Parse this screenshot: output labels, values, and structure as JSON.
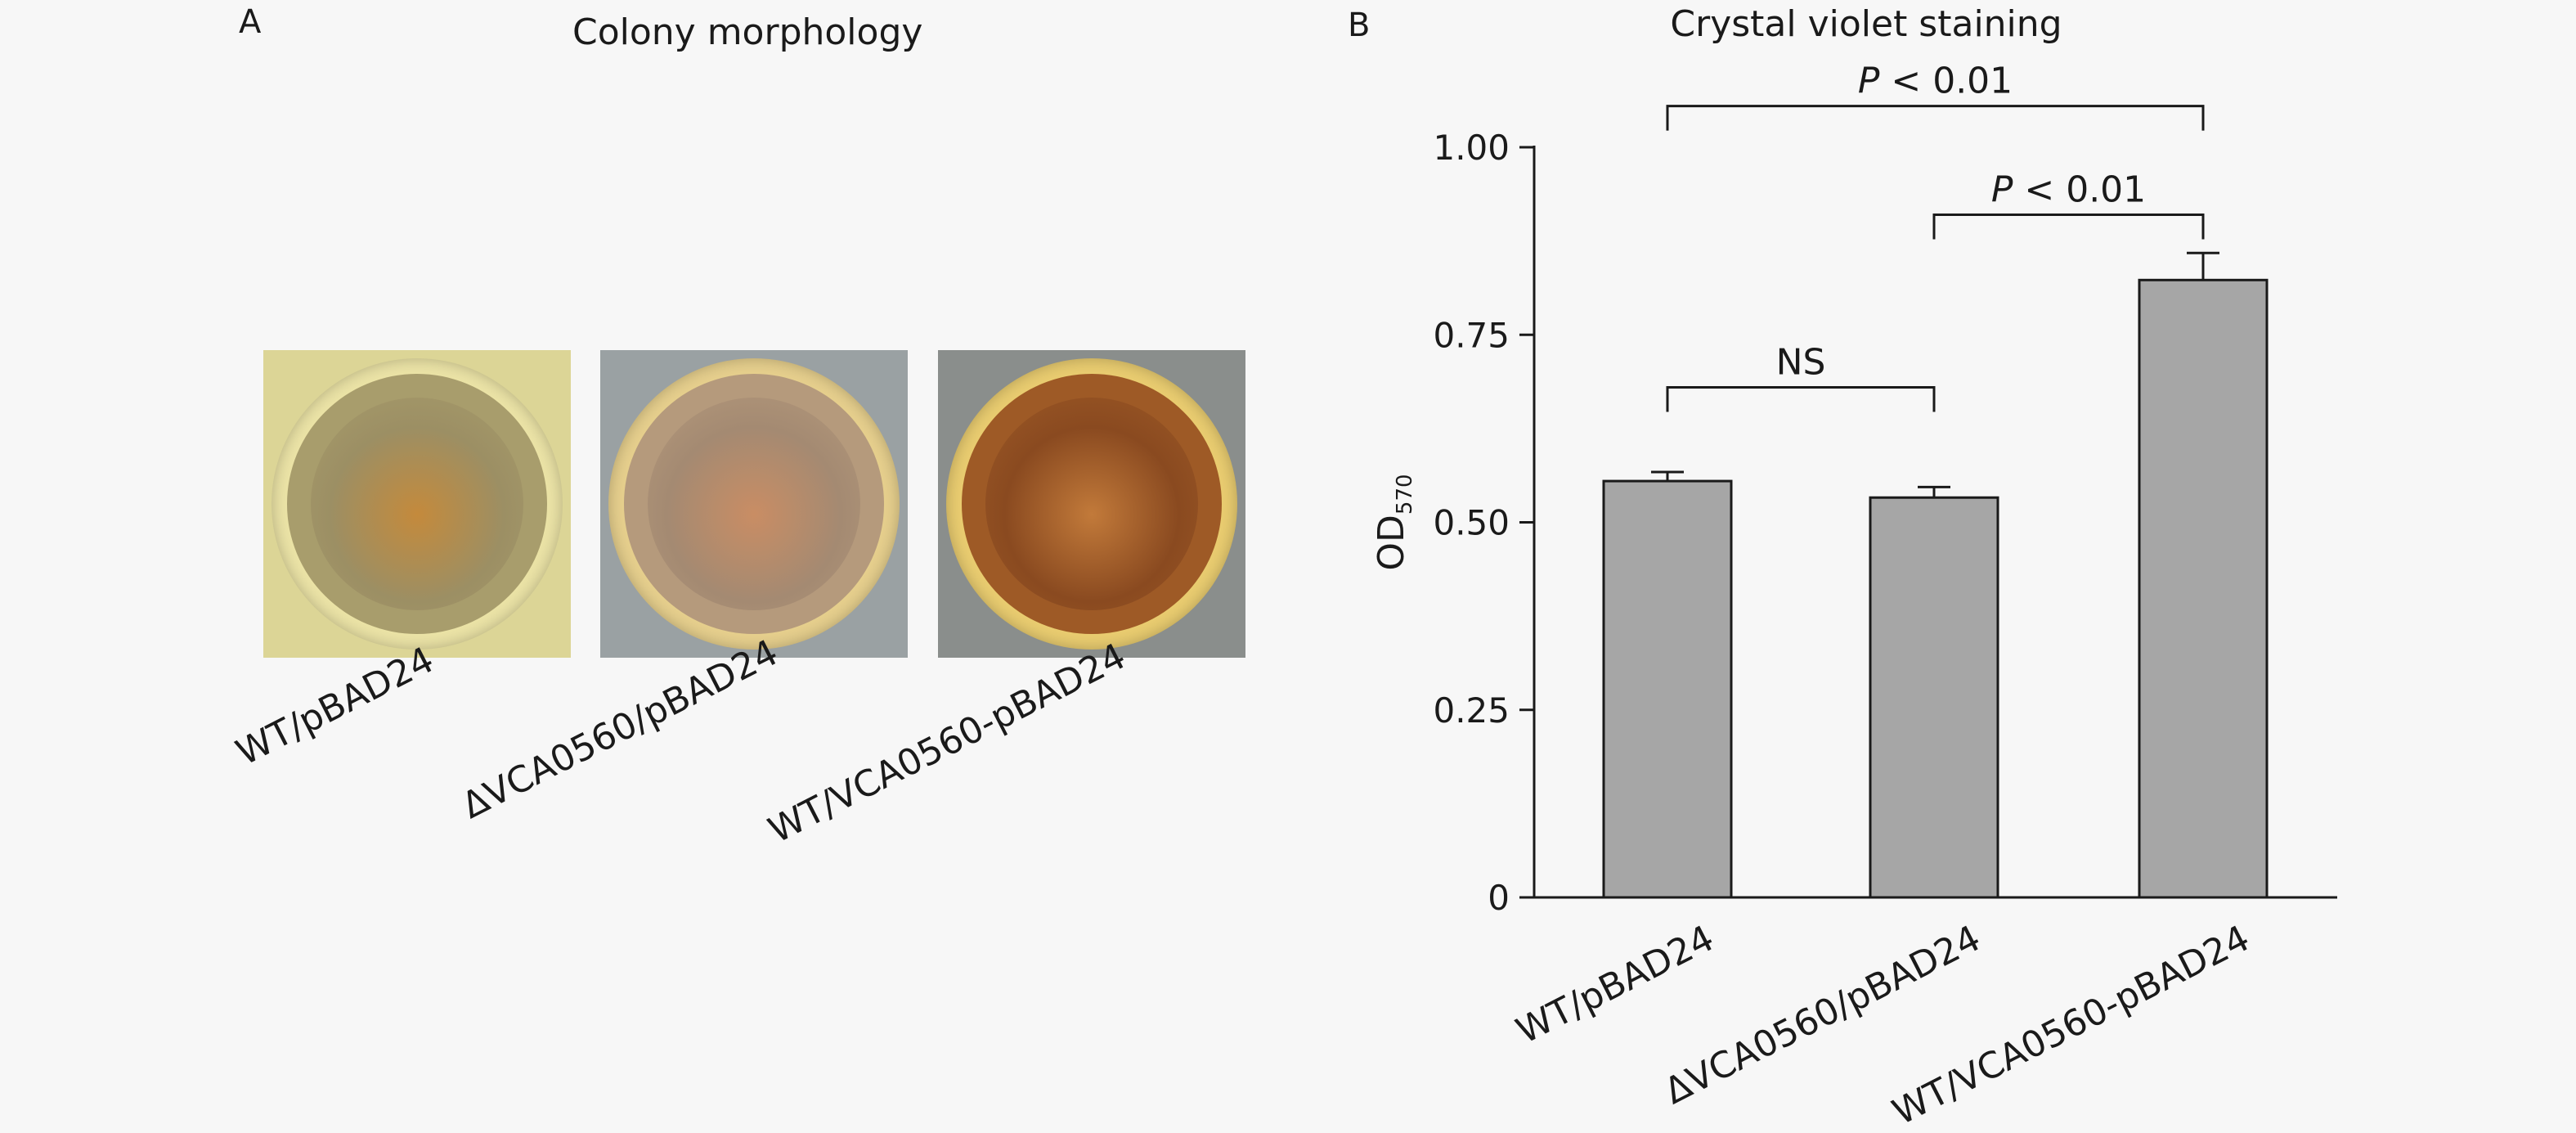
{
  "panel_a": {
    "letter": "A",
    "title": "Colony morphology",
    "samples": [
      {
        "label": "WT/pBAD24",
        "bg": "#dcd596",
        "rim": "#ebe3a6",
        "inner": "#a89d6c",
        "core": "#9c8f64",
        "accent": "#c48a3c"
      },
      {
        "label": "ΔVCA0560/pBAD24",
        "bg": "#9aa1a3",
        "rim": "#e6cf8d",
        "inner": "#b59a7c",
        "core": "#a48a72",
        "accent": "#c98d64"
      },
      {
        "label": "WT/VCA0560-pBAD24",
        "bg": "#8a8e8c",
        "rim": "#e9cc70",
        "inner": "#9e5a26",
        "core": "#8a4a20",
        "accent": "#c27a3a"
      }
    ]
  },
  "panel_b": {
    "letter": "B",
    "title": "Crystal violet staining"
  },
  "chart_data": {
    "type": "bar",
    "title": "Crystal violet staining",
    "categories": [
      "WT/pBAD24",
      "ΔVCA0560/pBAD24",
      "WT/VCA0560-pBAD24"
    ],
    "values": [
      0.555,
      0.533,
      0.823
    ],
    "errors": [
      0.012,
      0.014,
      0.036
    ],
    "ylabel_main": "OD",
    "ylabel_sub": "570",
    "ylim": [
      0,
      1.0
    ],
    "yticks": [
      0,
      0.25,
      0.5,
      0.75,
      1.0
    ],
    "ytick_labels": [
      "0",
      "0.25",
      "0.50",
      "0.75",
      "1.00"
    ],
    "bar_color": "#a6a6a6",
    "comparisons": [
      {
        "from": 0,
        "to": 1,
        "italic": "",
        "text": "NS",
        "y": 0.68
      },
      {
        "from": 1,
        "to": 2,
        "italic": "P",
        "text": " < 0.01",
        "y": 0.91
      },
      {
        "from": 0,
        "to": 2,
        "italic": "P",
        "text": " < 0.01",
        "y": 1.055
      }
    ]
  }
}
